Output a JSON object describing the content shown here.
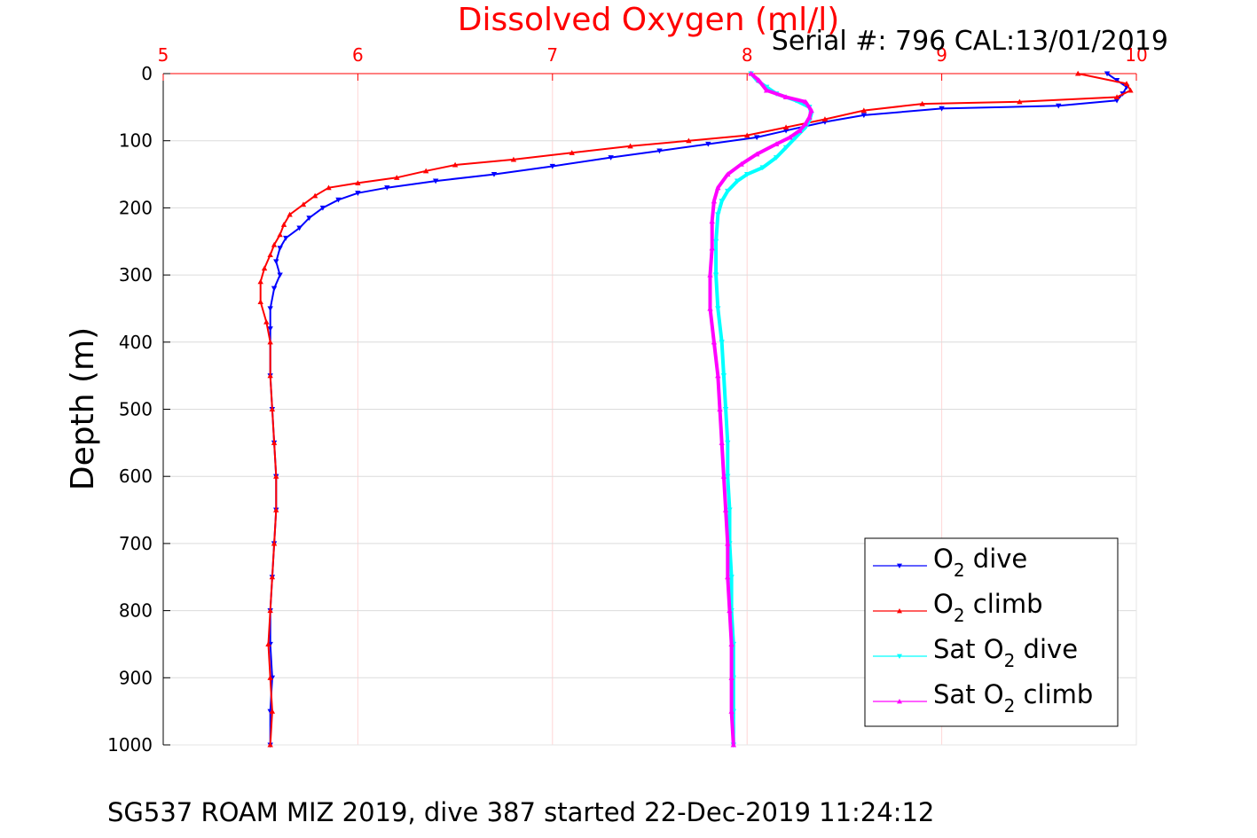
{
  "chart_data": {
    "type": "line",
    "title": "Dissolved Oxygen (ml/l)",
    "annotation": "Serial #: 796  CAL:13/01/2019",
    "footer": "SG537 ROAM MIZ 2019, dive 387 started 22-Dec-2019 11:24:12",
    "ylabel": "Depth (m)",
    "xlim": [
      5,
      10
    ],
    "ylim": [
      0,
      1000
    ],
    "y_reversed": true,
    "x_axis_position": "top",
    "x_ticks": [
      5,
      6,
      7,
      8,
      9,
      10
    ],
    "y_ticks": [
      0,
      100,
      200,
      300,
      400,
      500,
      600,
      700,
      800,
      900,
      1000
    ],
    "grid": true,
    "legend_position": "bottom-right",
    "series": [
      {
        "name": "O2 dive",
        "legend": {
          "pre": "O",
          "sub": "2",
          "post": " dive"
        },
        "color": "#0000ff",
        "marker": "triangle-down",
        "points": [
          [
            9.85,
            0
          ],
          [
            9.9,
            10
          ],
          [
            9.95,
            20
          ],
          [
            9.93,
            30
          ],
          [
            9.9,
            40
          ],
          [
            9.6,
            48
          ],
          [
            9.0,
            52
          ],
          [
            8.6,
            62
          ],
          [
            8.4,
            72
          ],
          [
            8.2,
            85
          ],
          [
            8.05,
            95
          ],
          [
            7.8,
            105
          ],
          [
            7.55,
            115
          ],
          [
            7.3,
            125
          ],
          [
            7.0,
            138
          ],
          [
            6.7,
            150
          ],
          [
            6.4,
            160
          ],
          [
            6.15,
            170
          ],
          [
            6.0,
            178
          ],
          [
            5.9,
            188
          ],
          [
            5.82,
            200
          ],
          [
            5.75,
            215
          ],
          [
            5.7,
            230
          ],
          [
            5.63,
            245
          ],
          [
            5.6,
            260
          ],
          [
            5.58,
            280
          ],
          [
            5.6,
            300
          ],
          [
            5.57,
            320
          ],
          [
            5.55,
            350
          ],
          [
            5.55,
            380
          ],
          [
            5.55,
            450
          ],
          [
            5.56,
            500
          ],
          [
            5.57,
            550
          ],
          [
            5.58,
            600
          ],
          [
            5.58,
            650
          ],
          [
            5.57,
            700
          ],
          [
            5.56,
            750
          ],
          [
            5.55,
            800
          ],
          [
            5.55,
            850
          ],
          [
            5.56,
            900
          ],
          [
            5.55,
            950
          ],
          [
            5.55,
            1000
          ]
        ]
      },
      {
        "name": "O2 climb",
        "legend": {
          "pre": "O",
          "sub": "2",
          "post": " climb"
        },
        "color": "#ff0000",
        "marker": "triangle-up",
        "points": [
          [
            9.7,
            0
          ],
          [
            9.95,
            15
          ],
          [
            9.97,
            25
          ],
          [
            9.9,
            35
          ],
          [
            9.4,
            42
          ],
          [
            8.9,
            45
          ],
          [
            8.6,
            55
          ],
          [
            8.4,
            68
          ],
          [
            8.2,
            80
          ],
          [
            8.0,
            92
          ],
          [
            7.7,
            100
          ],
          [
            7.4,
            108
          ],
          [
            7.1,
            118
          ],
          [
            6.8,
            128
          ],
          [
            6.5,
            136
          ],
          [
            6.35,
            145
          ],
          [
            6.2,
            155
          ],
          [
            6.0,
            163
          ],
          [
            5.85,
            170
          ],
          [
            5.78,
            182
          ],
          [
            5.72,
            195
          ],
          [
            5.65,
            210
          ],
          [
            5.62,
            225
          ],
          [
            5.6,
            240
          ],
          [
            5.57,
            255
          ],
          [
            5.55,
            270
          ],
          [
            5.52,
            290
          ],
          [
            5.5,
            310
          ],
          [
            5.5,
            340
          ],
          [
            5.53,
            370
          ],
          [
            5.55,
            400
          ],
          [
            5.55,
            450
          ],
          [
            5.56,
            500
          ],
          [
            5.57,
            550
          ],
          [
            5.58,
            600
          ],
          [
            5.58,
            650
          ],
          [
            5.57,
            700
          ],
          [
            5.56,
            750
          ],
          [
            5.55,
            800
          ],
          [
            5.54,
            850
          ],
          [
            5.55,
            900
          ],
          [
            5.56,
            950
          ],
          [
            5.55,
            1000
          ]
        ]
      },
      {
        "name": "Sat O2 dive",
        "legend": {
          "pre": "Sat O",
          "sub": "2",
          "post": " dive"
        },
        "color": "#00ffff",
        "marker": "triangle-down",
        "points": [
          [
            8.02,
            0
          ],
          [
            8.05,
            10
          ],
          [
            8.1,
            20
          ],
          [
            8.15,
            30
          ],
          [
            8.25,
            40
          ],
          [
            8.32,
            50
          ],
          [
            8.33,
            60
          ],
          [
            8.32,
            70
          ],
          [
            8.3,
            80
          ],
          [
            8.25,
            95
          ],
          [
            8.2,
            110
          ],
          [
            8.15,
            125
          ],
          [
            8.08,
            140
          ],
          [
            8.0,
            150
          ],
          [
            7.95,
            160
          ],
          [
            7.9,
            175
          ],
          [
            7.87,
            190
          ],
          [
            7.85,
            210
          ],
          [
            7.84,
            250
          ],
          [
            7.84,
            300
          ],
          [
            7.85,
            350
          ],
          [
            7.87,
            400
          ],
          [
            7.88,
            450
          ],
          [
            7.89,
            500
          ],
          [
            7.9,
            550
          ],
          [
            7.9,
            600
          ],
          [
            7.91,
            650
          ],
          [
            7.91,
            700
          ],
          [
            7.92,
            750
          ],
          [
            7.92,
            800
          ],
          [
            7.93,
            850
          ],
          [
            7.93,
            900
          ],
          [
            7.93,
            950
          ],
          [
            7.93,
            1000
          ]
        ]
      },
      {
        "name": "Sat O2 climb",
        "legend": {
          "pre": "Sat O",
          "sub": "2",
          "post": " climb"
        },
        "color": "#ff00ff",
        "marker": "triangle-up",
        "points": [
          [
            8.02,
            0
          ],
          [
            8.06,
            10
          ],
          [
            8.1,
            25
          ],
          [
            8.2,
            35
          ],
          [
            8.3,
            42
          ],
          [
            8.33,
            55
          ],
          [
            8.32,
            65
          ],
          [
            8.3,
            75
          ],
          [
            8.27,
            85
          ],
          [
            8.22,
            95
          ],
          [
            8.15,
            105
          ],
          [
            8.05,
            120
          ],
          [
            7.97,
            135
          ],
          [
            7.9,
            150
          ],
          [
            7.85,
            170
          ],
          [
            7.83,
            190
          ],
          [
            7.82,
            220
          ],
          [
            7.82,
            260
          ],
          [
            7.81,
            300
          ],
          [
            7.81,
            350
          ],
          [
            7.83,
            400
          ],
          [
            7.85,
            450
          ],
          [
            7.86,
            500
          ],
          [
            7.87,
            550
          ],
          [
            7.88,
            600
          ],
          [
            7.89,
            650
          ],
          [
            7.9,
            700
          ],
          [
            7.9,
            750
          ],
          [
            7.91,
            800
          ],
          [
            7.92,
            850
          ],
          [
            7.92,
            900
          ],
          [
            7.92,
            950
          ],
          [
            7.93,
            1000
          ]
        ]
      }
    ]
  }
}
